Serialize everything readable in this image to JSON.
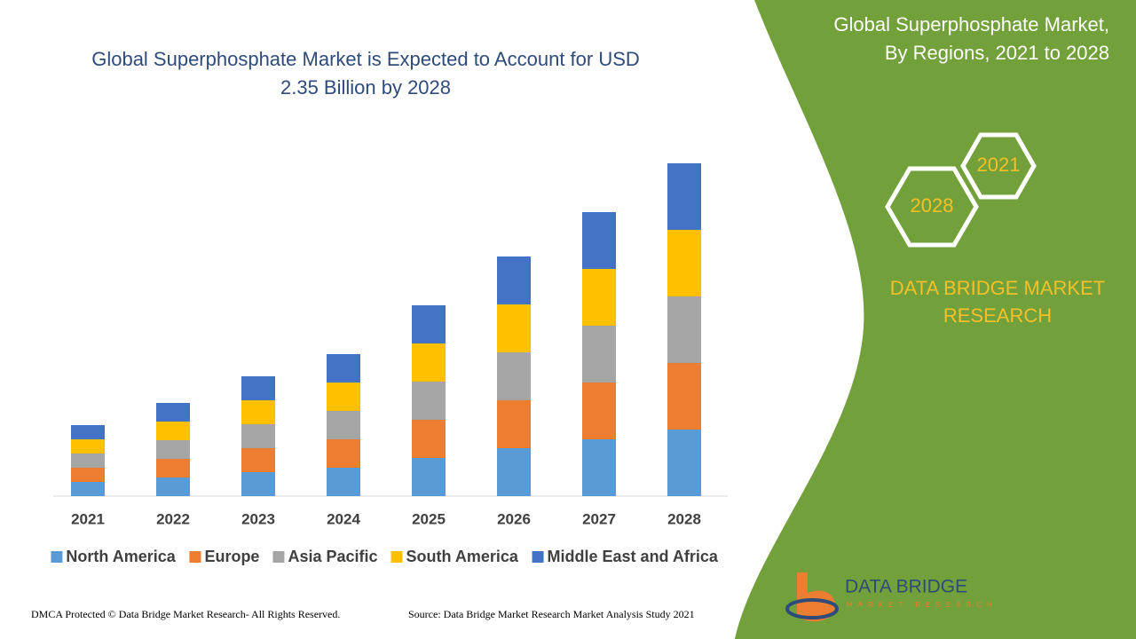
{
  "chart_data": {
    "type": "bar",
    "stacked": true,
    "title": [
      "Global Superphosphate Market is Expected to Account for USD",
      "2.35 Billion by 2028"
    ],
    "categories": [
      "2021",
      "2022",
      "2023",
      "2024",
      "2025",
      "2026",
      "2027",
      "2028"
    ],
    "series": [
      {
        "name": "North America",
        "color": "#5b9bd5",
        "values": [
          16,
          21,
          27,
          32,
          43,
          54,
          64,
          75
        ]
      },
      {
        "name": "Europe",
        "color": "#ed7d31",
        "values": [
          16,
          21,
          27,
          32,
          43,
          54,
          64,
          75
        ]
      },
      {
        "name": "Asia Pacific",
        "color": "#a5a5a5",
        "values": [
          16,
          21,
          27,
          32,
          43,
          54,
          64,
          75
        ]
      },
      {
        "name": "South America",
        "color": "#ffc000",
        "values": [
          16,
          21,
          27,
          32,
          43,
          54,
          64,
          75
        ]
      },
      {
        "name": "Middle East and Africa",
        "color": "#4472c4",
        "values": [
          16,
          21,
          27,
          32,
          43,
          54,
          64,
          75
        ]
      }
    ],
    "legend": "bottom"
  },
  "side_panel": {
    "title": [
      "Global Superphosphate Market,",
      "By Regions, 2021 to 2028"
    ],
    "hexagons": [
      "2021",
      "2028"
    ],
    "brand": [
      "DATA BRIDGE MARKET",
      "RESEARCH"
    ]
  },
  "logo": {
    "name": "DATA BRIDGE",
    "tagline": "MARKET RESEARCH"
  },
  "footer": {
    "copyright": "DMCA Protected © Data Bridge Market Research- All Rights Reserved.",
    "source": "Source: Data Bridge Market Research Market Analysis Study 2021"
  }
}
